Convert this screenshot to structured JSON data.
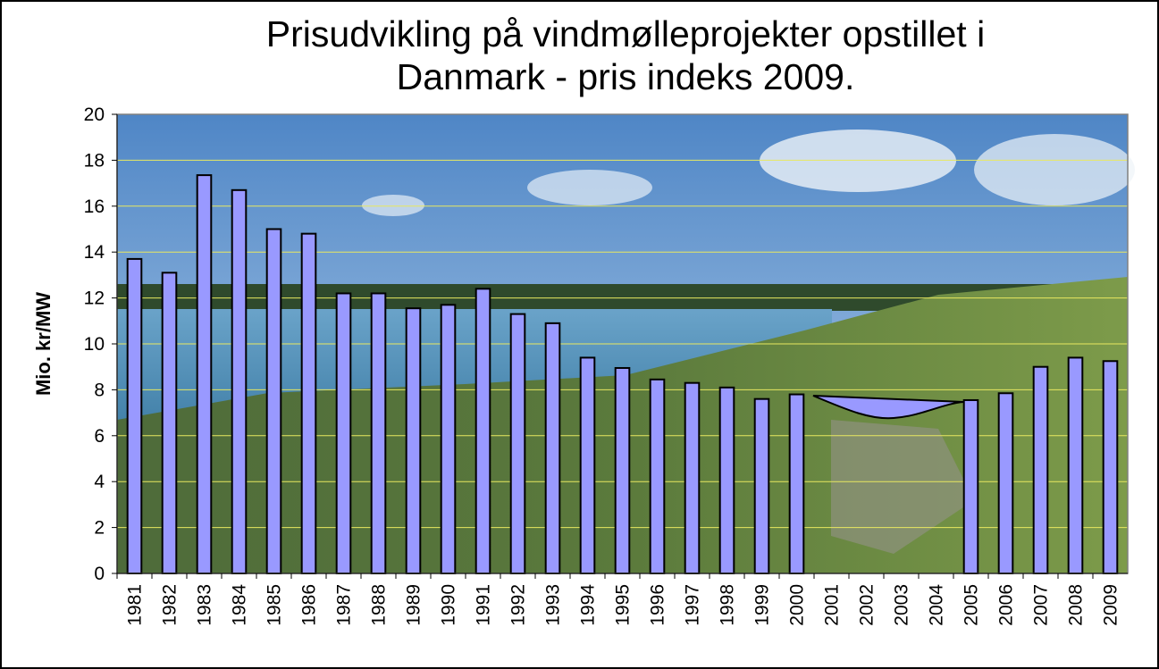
{
  "chart_data": {
    "type": "bar",
    "title": "Prisudvikling på vindmølleprojekter opstillet i Danmark - pris indeks 2009.",
    "y_label": "Mio. kr/MW",
    "categories": [
      "1981",
      "1982",
      "1983",
      "1984",
      "1985",
      "1986",
      "1987",
      "1988",
      "1989",
      "1990",
      "1991",
      "1992",
      "1993",
      "1994",
      "1995",
      "1996",
      "1997",
      "1998",
      "1999",
      "2000",
      "2001",
      "2002",
      "2003",
      "2004",
      "2005",
      "2006",
      "2007",
      "2008",
      "2009"
    ],
    "values": [
      13.7,
      13.1,
      17.35,
      16.7,
      15.0,
      14.8,
      12.2,
      12.2,
      11.55,
      11.7,
      12.4,
      11.3,
      10.9,
      9.4,
      8.95,
      8.45,
      8.3,
      8.1,
      7.6,
      7.8,
      null,
      null,
      null,
      null,
      7.55,
      7.85,
      9.0,
      9.4,
      9.25
    ],
    "color": "#9999ff",
    "ylim": [
      0,
      20
    ],
    "yticks": [
      0,
      2,
      4,
      6,
      8,
      10,
      12,
      14,
      16,
      18,
      20
    ],
    "grid": true
  }
}
